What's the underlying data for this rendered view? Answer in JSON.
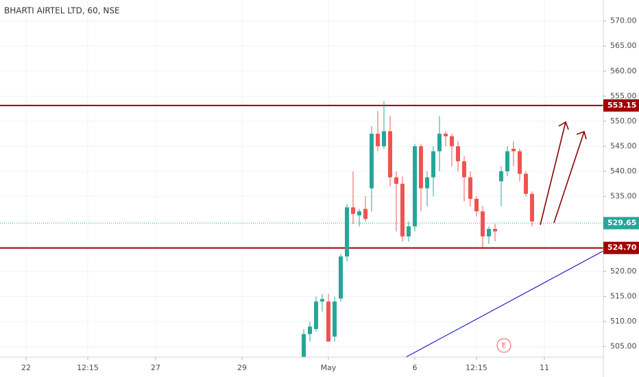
{
  "chart_data": {
    "type": "candlestick",
    "title": "BHARTI AIRTEL LTD, 60, NSE",
    "categories": [
      null,
      null,
      null,
      null,
      "22",
      null,
      null,
      null,
      null,
      null,
      null,
      null,
      null,
      null,
      "12:15",
      null,
      null,
      null,
      null,
      null,
      null,
      null,
      null,
      null,
      null,
      "27",
      null,
      null,
      null,
      null,
      null,
      null,
      null,
      null,
      null,
      null,
      null,
      null,
      null,
      "29",
      null,
      null,
      null,
      null,
      null,
      null,
      null,
      null,
      null,
      null,
      null,
      null,
      null,
      "May",
      null,
      null,
      null,
      null,
      null,
      null,
      null,
      null,
      null,
      null,
      null,
      null,
      null,
      "6",
      null,
      null,
      null,
      null,
      null,
      null,
      null,
      null,
      null,
      "12:15",
      null,
      null,
      null,
      null,
      null,
      null,
      null,
      null,
      null,
      null,
      "11",
      null,
      null,
      null,
      null,
      null,
      null,
      null,
      null,
      null
    ],
    "open": [
      null,
      null,
      null,
      null,
      null,
      null,
      null,
      null,
      null,
      null,
      null,
      null,
      null,
      null,
      null,
      null,
      null,
      null,
      null,
      null,
      null,
      null,
      null,
      null,
      null,
      null,
      null,
      null,
      null,
      null,
      null,
      null,
      null,
      null,
      null,
      null,
      null,
      null,
      null,
      null,
      null,
      null,
      null,
      null,
      null,
      null,
      null,
      null,
      null,
      502.5,
      507.5,
      508.5,
      514,
      514,
      507,
      514.6,
      523,
      532.8,
      531.2,
      532.5,
      536.6,
      547.5,
      545,
      548,
      538.8,
      537.5,
      527,
      529,
      545,
      536.6,
      538.8,
      544,
      547.5,
      547,
      545,
      542,
      538.8,
      534.5,
      532,
      527,
      528.5,
      538,
      540,
      544.5,
      544,
      539.5,
      535.5,
      null,
      null,
      null,
      null,
      null,
      null,
      null,
      null,
      null,
      null,
      null
    ],
    "high": [
      null,
      null,
      null,
      null,
      null,
      null,
      null,
      null,
      null,
      null,
      null,
      null,
      null,
      null,
      null,
      null,
      null,
      null,
      null,
      null,
      null,
      null,
      null,
      null,
      null,
      null,
      null,
      null,
      null,
      null,
      null,
      null,
      null,
      null,
      null,
      null,
      null,
      null,
      null,
      null,
      null,
      null,
      null,
      null,
      null,
      null,
      null,
      null,
      null,
      508.5,
      510,
      515,
      515.5,
      515.5,
      515,
      523.5,
      533.5,
      540,
      532.5,
      535,
      549,
      552,
      554,
      551,
      540,
      539,
      530,
      545.5,
      545.5,
      540,
      545,
      551,
      548,
      547.5,
      546,
      543,
      540,
      535,
      533,
      529,
      529.5,
      541,
      545,
      546,
      544.5,
      540,
      536,
      null,
      null,
      null,
      null,
      null,
      null,
      null,
      null,
      null,
      null,
      null
    ],
    "low": [
      null,
      null,
      null,
      null,
      null,
      null,
      null,
      null,
      null,
      null,
      null,
      null,
      null,
      null,
      null,
      null,
      null,
      null,
      null,
      null,
      null,
      null,
      null,
      null,
      null,
      null,
      null,
      null,
      null,
      null,
      null,
      null,
      null,
      null,
      null,
      null,
      null,
      null,
      null,
      null,
      null,
      null,
      null,
      null,
      null,
      null,
      null,
      null,
      null,
      502,
      506,
      508,
      512,
      506,
      506,
      514,
      522,
      529.5,
      529,
      530,
      532,
      544,
      544.5,
      537,
      528,
      526,
      526,
      528,
      532,
      533,
      535,
      540,
      545,
      541,
      540,
      534,
      533,
      531,
      524.8,
      525.5,
      526,
      533,
      539,
      541,
      538,
      535,
      529,
      null,
      null,
      null,
      null,
      null,
      null,
      null,
      null,
      null,
      null,
      null
    ],
    "close": [
      null,
      null,
      null,
      null,
      null,
      null,
      null,
      null,
      null,
      null,
      null,
      null,
      null,
      null,
      null,
      null,
      null,
      null,
      null,
      null,
      null,
      null,
      null,
      null,
      null,
      null,
      null,
      null,
      null,
      null,
      null,
      null,
      null,
      null,
      null,
      null,
      null,
      null,
      null,
      null,
      null,
      null,
      null,
      null,
      null,
      null,
      null,
      null,
      null,
      507.5,
      509,
      514,
      514.5,
      506,
      514,
      523,
      532.8,
      531.5,
      532,
      530.5,
      547.5,
      545,
      548,
      538.8,
      537.5,
      527,
      529,
      545,
      536.6,
      538.8,
      544,
      547.5,
      547,
      545,
      542,
      538.8,
      534.5,
      532,
      527,
      528.5,
      528,
      540,
      544,
      544,
      539.5,
      535.5,
      530,
      null,
      null,
      null,
      null,
      null,
      null,
      null,
      null,
      null,
      null,
      null
    ],
    "up_color": "#26a69a",
    "down_color": "#ef5350",
    "ylim": [
      502.9,
      574.2
    ],
    "yticks": [
      {
        "value": 505,
        "label": "505.00"
      },
      {
        "value": 510,
        "label": "510.00"
      },
      {
        "value": 515,
        "label": "515.00"
      },
      {
        "value": 520,
        "label": "520.00"
      },
      {
        "value": 525,
        "label": "525.00"
      },
      {
        "value": 530,
        "label": "530.00"
      },
      {
        "value": 535,
        "label": "535.00"
      },
      {
        "value": 540,
        "label": "540.00"
      },
      {
        "value": 545,
        "label": "545.00"
      },
      {
        "value": 550,
        "label": "550.00"
      },
      {
        "value": 555,
        "label": "555.00"
      },
      {
        "value": 560,
        "label": "560.00"
      },
      {
        "value": 565,
        "label": "565.00"
      },
      {
        "value": 570,
        "label": "570.00"
      }
    ],
    "grid": true,
    "levels": [
      {
        "value": 553.15,
        "label": "553.15"
      },
      {
        "value": 524.7,
        "label": "524.70"
      }
    ],
    "level_color": "#a30000",
    "last_price": {
      "value": 529.65,
      "label": "529.65"
    },
    "last_color": "#26a69a",
    "annotation": "E"
  }
}
